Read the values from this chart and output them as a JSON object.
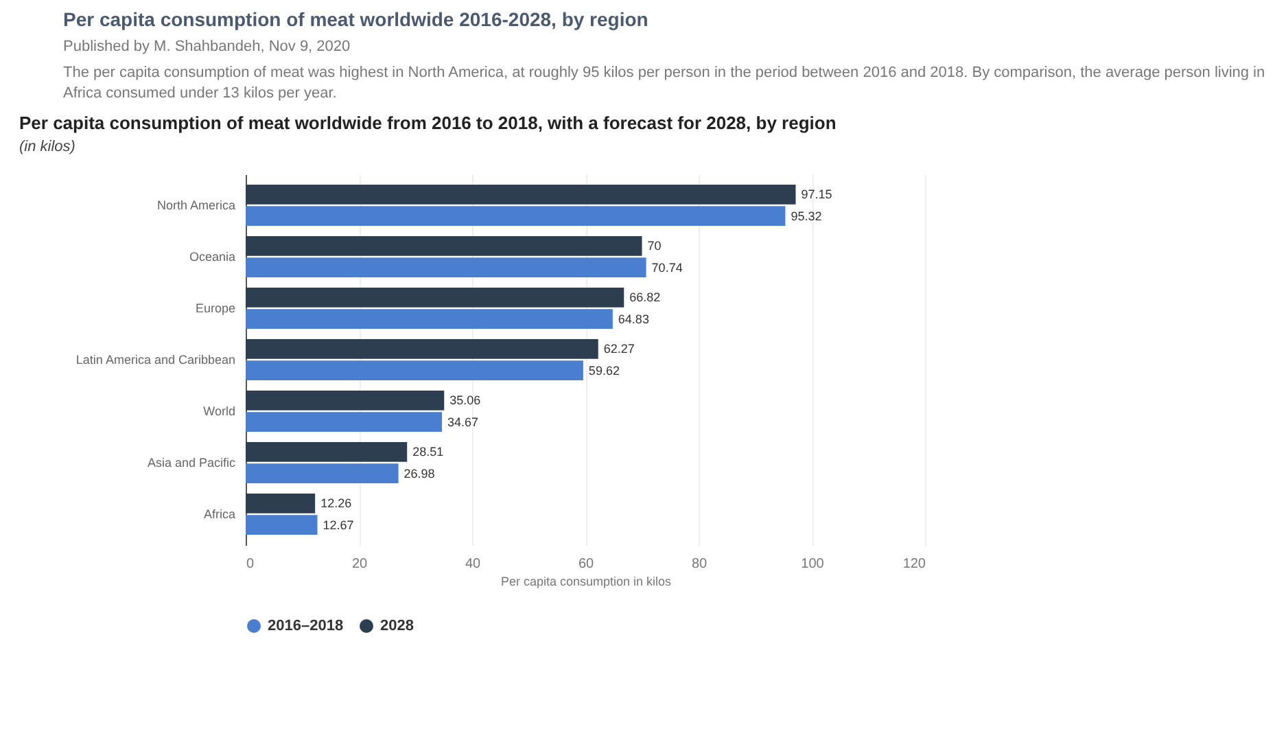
{
  "chart_data": {
    "type": "bar",
    "orientation": "horizontal",
    "title": "Per capita consumption of meat worldwide 2016-2028, by region",
    "subtitle": "Published by M. Shahbandeh, Nov 9, 2020",
    "annotations": [
      "The per capita consumption of meat was highest in North America, at roughly 95 kilos per person in the period between 2016 and 2018. By comparison, the average person living in Africa consumed under 13 kilos per year.",
      "Per capita consumption of meat worldwide from 2016 to 2018, with a forecast for 2028, by region",
      "(in kilos)"
    ],
    "xlabel": "Per capita consumption in kilos",
    "categories": [
      "North America",
      "Oceania",
      "Europe",
      "Latin America and Caribbean",
      "World",
      "Asia and Pacific",
      "Africa"
    ],
    "series": [
      {
        "name": "2016–2018",
        "color": "#4a7fcf",
        "values": [
          95.32,
          70.74,
          64.83,
          59.62,
          34.67,
          26.98,
          12.67
        ]
      },
      {
        "name": "2028",
        "color": "#2c3e50",
        "values": [
          97.15,
          70,
          66.82,
          62.27,
          35.06,
          28.51,
          12.26
        ]
      }
    ],
    "xlim": [
      0,
      120
    ],
    "xticks": [
      0,
      20,
      40,
      60,
      80,
      100,
      120
    ],
    "grid": "x",
    "legend": "bottom",
    "data_labels": true
  }
}
